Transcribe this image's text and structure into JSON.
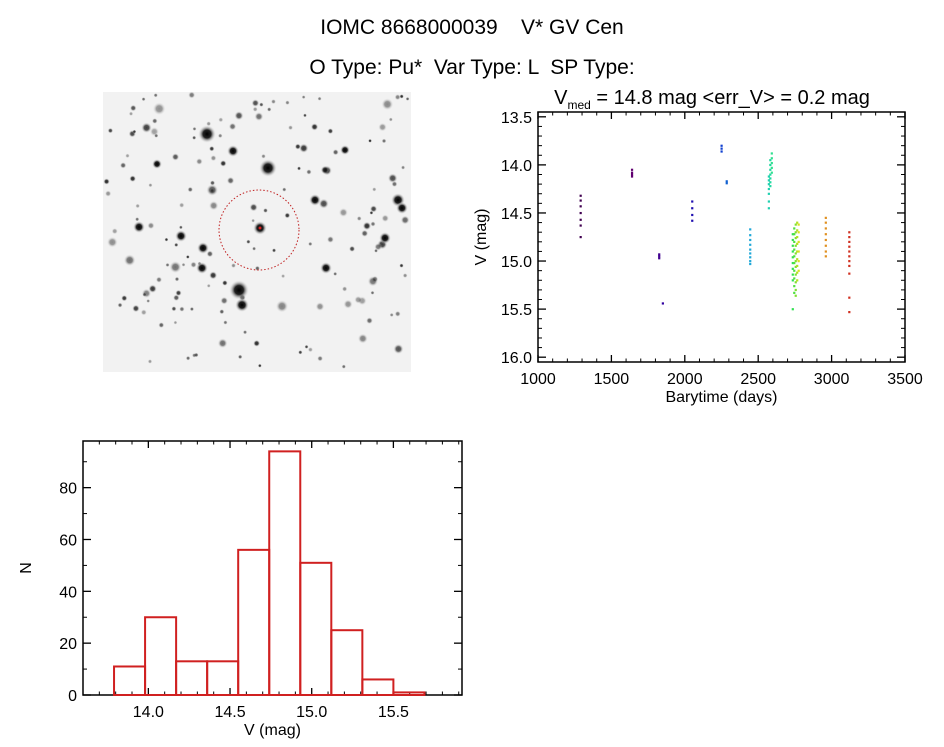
{
  "header": {
    "title": "IOMC 8668000039    V* GV Cen",
    "subtitle": "O Type: Pu*  Var Type: L  SP Type:"
  },
  "finder_image": {
    "description_visible": "sky field image with dotted red circle around target star"
  },
  "chart_data": [
    {
      "type": "scatter",
      "title_prefix": "V",
      "title_subscript": "med",
      "title_rest": " = 14.8 mag <err_V> = 0.2 mag",
      "xlabel": "Barytime (days)",
      "ylabel": "V (mag)",
      "xlim": [
        1000,
        3500
      ],
      "ylim": [
        16.05,
        13.45
      ],
      "y_inverted": true,
      "xticks": [
        "1000",
        "1500",
        "2000",
        "2500",
        "3000",
        "3500"
      ],
      "yticks": [
        "13.5",
        "14.0",
        "14.5",
        "15.0",
        "15.5",
        "16.0"
      ],
      "grid": false,
      "groups": [
        {
          "t": 1290,
          "color": "#400050",
          "v": [
            14.32,
            14.37,
            14.43,
            14.5,
            14.57,
            14.63,
            14.75
          ]
        },
        {
          "t": 1640,
          "color": "#600070",
          "v": [
            14.05,
            14.08,
            14.1,
            14.12
          ]
        },
        {
          "t": 1825,
          "color": "#400090",
          "v": [
            14.93,
            14.95,
            14.97
          ]
        },
        {
          "t": 1850,
          "color": "#3000a0",
          "v": [
            15.44
          ]
        },
        {
          "t": 2050,
          "color": "#2010b0",
          "v": [
            14.38,
            14.45,
            14.52,
            14.58
          ]
        },
        {
          "t": 2250,
          "color": "#1040d0",
          "v": [
            13.8,
            13.83,
            13.86
          ]
        },
        {
          "t": 2285,
          "color": "#1060d0",
          "v": [
            14.17,
            14.19
          ]
        },
        {
          "t": 2445,
          "color": "#20a8d8",
          "v": [
            14.67,
            14.73,
            14.78,
            14.83,
            14.88,
            14.92,
            14.96,
            15.0,
            15.03
          ]
        },
        {
          "t": 2572,
          "color": "#20d0b0",
          "v": [
            14.12,
            14.16,
            14.2,
            14.25,
            14.3,
            14.38,
            14.45
          ]
        },
        {
          "t": 2582,
          "color": "#20d8a0",
          "v": [
            13.95,
            14.0,
            14.05,
            14.1,
            14.14,
            14.18,
            14.22
          ]
        },
        {
          "t": 2592,
          "color": "#30e090",
          "v": [
            13.88,
            13.93,
            13.98,
            14.03,
            14.08
          ]
        },
        {
          "t": 2735,
          "color": "#30e050",
          "v": [
            14.72,
            14.78,
            14.84,
            14.9,
            14.96,
            15.02,
            15.08,
            15.14,
            15.2,
            15.5
          ]
        },
        {
          "t": 2745,
          "color": "#50e040",
          "v": [
            14.66,
            14.72,
            14.8,
            14.88,
            14.95,
            15.02,
            15.1,
            15.18,
            15.26,
            15.33
          ]
        },
        {
          "t": 2755,
          "color": "#80e030",
          "v": [
            14.62,
            14.7,
            14.76,
            14.84,
            14.92,
            15.0,
            15.06,
            15.14,
            15.22,
            15.3,
            15.36
          ]
        },
        {
          "t": 2765,
          "color": "#b0e020",
          "v": [
            14.6,
            14.68,
            14.75,
            14.82,
            14.9,
            14.98,
            15.05,
            15.12,
            15.2
          ]
        },
        {
          "t": 2775,
          "color": "#d8e020",
          "v": [
            14.62,
            14.7,
            14.8,
            14.9,
            15.0,
            15.1
          ]
        },
        {
          "t": 2960,
          "color": "#e09020",
          "v": [
            14.55,
            14.6,
            14.66,
            14.72,
            14.78,
            14.84,
            14.9,
            14.95
          ]
        },
        {
          "t": 3120,
          "color": "#d03020",
          "v": [
            14.7,
            14.75,
            14.8,
            14.85,
            14.9,
            14.95,
            15.0,
            15.05,
            15.13,
            15.38,
            15.53
          ]
        }
      ]
    },
    {
      "type": "bar",
      "subtype": "histogram",
      "xlabel": "V (mag)",
      "ylabel": "N",
      "xlim": [
        13.6,
        15.92
      ],
      "ylim": [
        0,
        98
      ],
      "xticks": [
        "14.0",
        "14.5",
        "15.0",
        "15.5"
      ],
      "yticks": [
        "0",
        "20",
        "40",
        "60",
        "80"
      ],
      "grid": false,
      "bin_edges": [
        13.79,
        13.98,
        14.17,
        14.36,
        14.55,
        14.74,
        14.93,
        15.12,
        15.31,
        15.5,
        15.69
      ],
      "values": [
        11,
        30,
        13,
        13,
        56,
        94,
        51,
        25,
        6,
        1
      ],
      "color": "#d02020"
    }
  ]
}
